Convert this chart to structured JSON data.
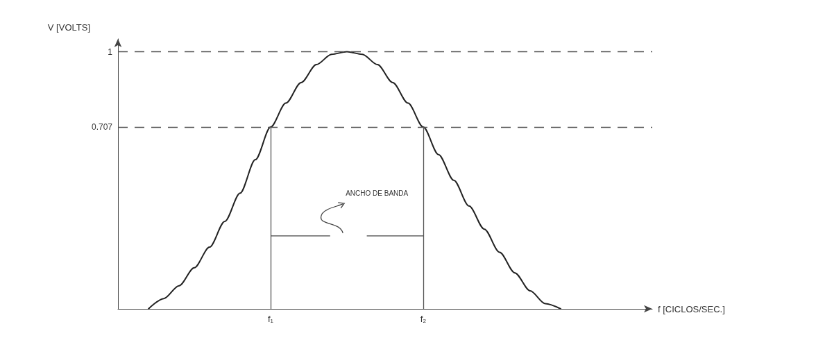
{
  "chart_data": {
    "type": "line",
    "xlabel": "f [CICLOS/SEC.]",
    "ylabel": "V [VOLTS]",
    "categories": [
      null,
      null,
      null,
      null,
      null,
      null,
      null,
      null,
      null,
      null,
      "f₁",
      null,
      null,
      null,
      null,
      null,
      null,
      null,
      null,
      null,
      "f₂",
      null,
      null,
      null,
      null,
      null,
      null,
      null,
      null,
      null,
      null,
      null,
      null,
      null,
      null,
      null
    ],
    "series": [
      {
        "color": "#222222",
        "values": [
          null,
          null,
          0,
          0.04,
          0.09,
          0.16,
          0.24,
          0.34,
          0.45,
          0.58,
          0.707,
          0.8,
          0.88,
          0.95,
          0.99,
          1,
          0.99,
          0.95,
          0.88,
          0.8,
          0.707,
          0.6,
          0.5,
          0.4,
          0.31,
          0.22,
          0.14,
          0.07,
          0.02,
          0,
          null,
          null,
          null,
          null,
          null,
          null
        ]
      }
    ],
    "ylim": [
      0,
      1.05
    ],
    "yticks": [
      0.707,
      1
    ],
    "grid": false,
    "marker": "none",
    "line_style": "solid",
    "ref_lines": [
      {
        "axis": "y",
        "value": 1,
        "line_style": "dashed",
        "color": "#555555"
      },
      {
        "axis": "y",
        "value": 0.707,
        "line_style": "dashed",
        "color": "#555555"
      },
      {
        "axis": "x",
        "value": "f₁",
        "line_style": "solid",
        "color": "#555555"
      },
      {
        "axis": "x",
        "value": "f₂",
        "line_style": "solid",
        "color": "#555555"
      }
    ],
    "annotations": [
      "ANCHO DE BANDA"
    ]
  }
}
